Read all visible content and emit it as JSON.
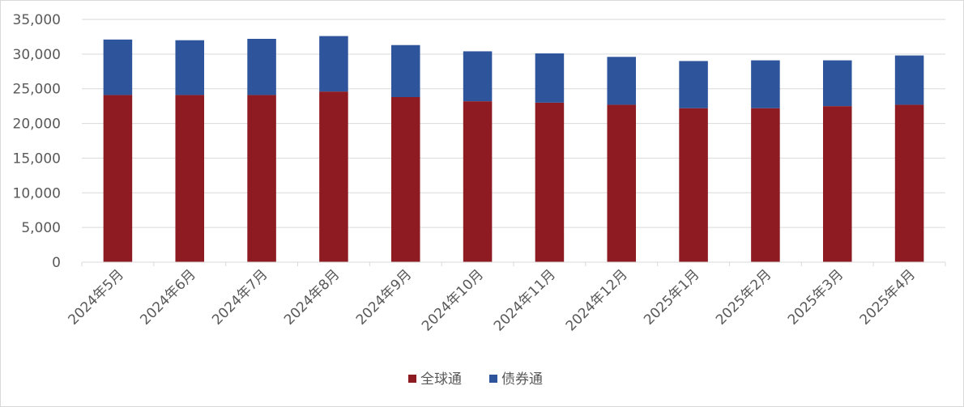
{
  "chart_data": {
    "type": "bar",
    "stacked": true,
    "categories": [
      "2024年5月",
      "2024年6月",
      "2024年7月",
      "2024年8月",
      "2024年9月",
      "2024年10月",
      "2024年11月",
      "2024年12月",
      "2025年1月",
      "2025年2月",
      "2025年3月",
      "2025年4月"
    ],
    "series": [
      {
        "name": "全球通",
        "color": "#8e1b22",
        "values": [
          24100,
          24100,
          24100,
          24600,
          23800,
          23200,
          23000,
          22700,
          22200,
          22200,
          22500,
          22700
        ]
      },
      {
        "name": "债券通",
        "color": "#2e559b",
        "values": [
          8000,
          7900,
          8100,
          8000,
          7500,
          7200,
          7100,
          6900,
          6800,
          6900,
          6600,
          7100
        ]
      }
    ],
    "ylim": [
      0,
      35000
    ],
    "yticks": [
      0,
      5000,
      10000,
      15000,
      20000,
      25000,
      30000,
      35000
    ],
    "ytick_labels": [
      "0",
      "5,000",
      "10,000",
      "15,000",
      "20,000",
      "25,000",
      "30,000",
      "35,000"
    ],
    "grid": true,
    "legend_position": "bottom",
    "xlabel_rotation": -45
  }
}
